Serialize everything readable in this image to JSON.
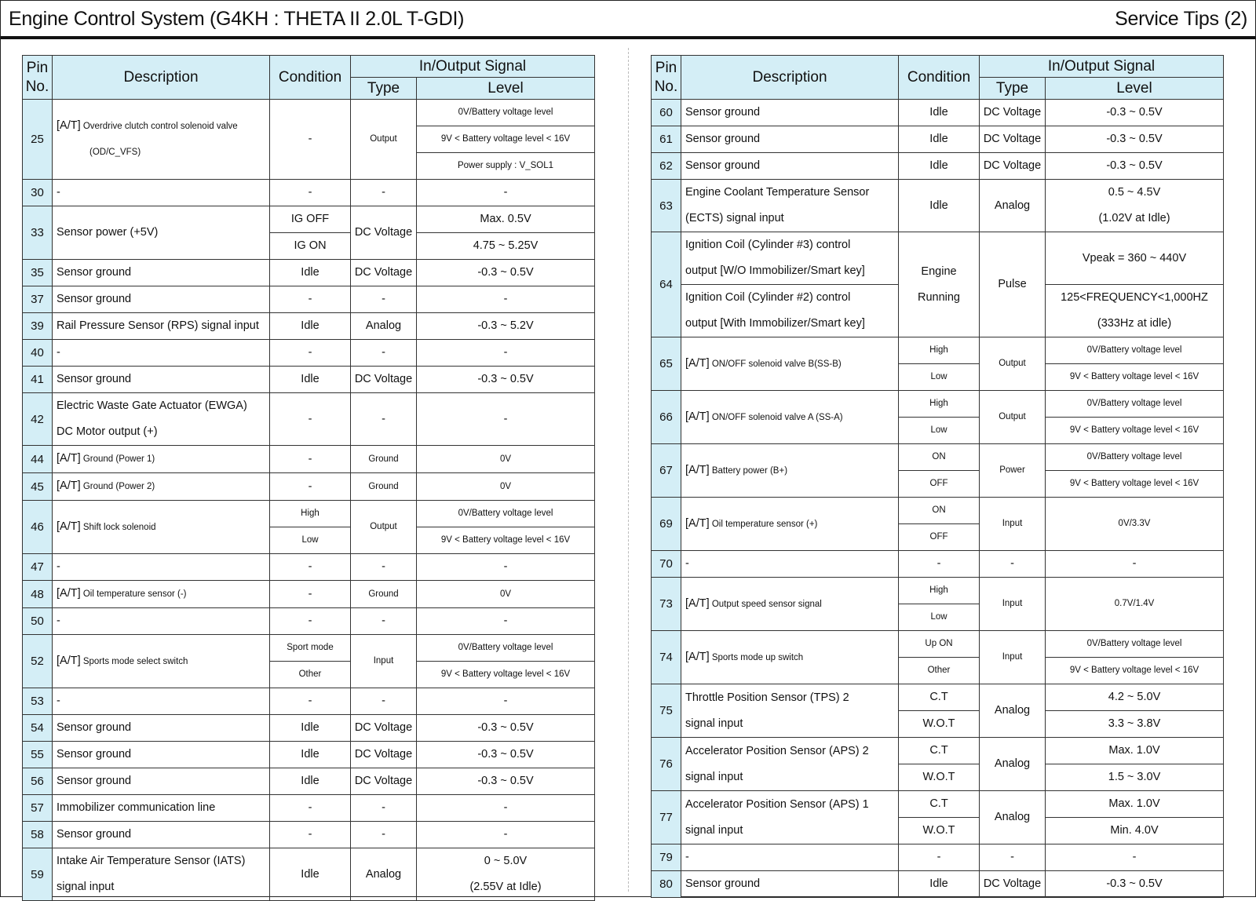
{
  "header": {
    "title": "Engine Control System (G4KH : THETA II 2.0L T-GDI)",
    "service_tips": "Service Tips  (2)"
  },
  "columns": {
    "pin": "Pin\nNo.",
    "description": "Description",
    "condition": "Condition",
    "signal": "In/Output Signal",
    "type": "Type",
    "level": "Level"
  },
  "left": {
    "rows": [
      [
        {
          "k": "p",
          "t": "25",
          "rs": 3
        },
        {
          "k": "d",
          "pre": "[A/T]",
          "t": "Overdrive clutch control solenoid valve",
          "t2": "(OD/C_VFS)",
          "rs": 3,
          "sm": true
        },
        {
          "t": "-",
          "rs": 3
        },
        {
          "t": "Output",
          "rs": 3,
          "sm": true
        },
        {
          "t": "0V/Battery voltage level",
          "sm": true
        }
      ],
      [
        {
          "t": "9V < Battery voltage level < 16V",
          "sm": true
        }
      ],
      [
        {
          "t": "Power supply : V_SOL1",
          "sm": true
        }
      ],
      [
        {
          "k": "p",
          "t": "30"
        },
        {
          "k": "d",
          "t": "-"
        },
        {
          "t": "-"
        },
        {
          "t": "-"
        },
        {
          "t": "-"
        }
      ],
      [
        {
          "k": "p",
          "t": "33",
          "rs": 2
        },
        {
          "k": "d",
          "t": "Sensor power (+5V)",
          "rs": 2
        },
        {
          "t": "IG OFF"
        },
        {
          "t": "DC Voltage",
          "rs": 2
        },
        {
          "t": "Max. 0.5V"
        }
      ],
      [
        {
          "t": "IG ON"
        },
        {
          "t": "4.75 ~ 5.25V"
        }
      ],
      [
        {
          "k": "p",
          "t": "35"
        },
        {
          "k": "d",
          "t": "Sensor ground"
        },
        {
          "t": "Idle"
        },
        {
          "t": "DC Voltage"
        },
        {
          "t": "-0.3 ~ 0.5V"
        }
      ],
      [
        {
          "k": "p",
          "t": "37"
        },
        {
          "k": "d",
          "t": "Sensor ground"
        },
        {
          "t": "-"
        },
        {
          "t": "-"
        },
        {
          "t": "-"
        }
      ],
      [
        {
          "k": "p",
          "t": "39"
        },
        {
          "k": "d",
          "t": "Rail Pressure Sensor (RPS) signal input"
        },
        {
          "t": "Idle"
        },
        {
          "t": "Analog"
        },
        {
          "t": "-0.3 ~ 5.2V"
        }
      ],
      [
        {
          "k": "p",
          "t": "40"
        },
        {
          "k": "d",
          "t": "-"
        },
        {
          "t": "-"
        },
        {
          "t": "-"
        },
        {
          "t": "-"
        }
      ],
      [
        {
          "k": "p",
          "t": "41"
        },
        {
          "k": "d",
          "t": "Sensor ground"
        },
        {
          "t": "Idle"
        },
        {
          "t": "DC Voltage"
        },
        {
          "t": "-0.3 ~ 0.5V"
        }
      ],
      [
        {
          "k": "p",
          "t": "42",
          "rs": 2
        },
        {
          "k": "d",
          "t": "Electric Waste Gate Actuator (EWGA)\nDC Motor output (+)",
          "rs": 2
        },
        {
          "t": "-",
          "rs": 2
        },
        {
          "t": "-",
          "rs": 2
        },
        {
          "t": "-",
          "rs": 2
        }
      ],
      [],
      [
        {
          "k": "p",
          "t": "44"
        },
        {
          "k": "d",
          "pre": "[A/T]",
          "t": "Ground (Power 1)",
          "sm": true
        },
        {
          "t": "-"
        },
        {
          "t": "Ground",
          "sm": true
        },
        {
          "t": "0V",
          "sm": true
        }
      ],
      [
        {
          "k": "p",
          "t": "45"
        },
        {
          "k": "d",
          "pre": "[A/T]",
          "t": "Ground (Power 2)",
          "sm": true
        },
        {
          "t": "-"
        },
        {
          "t": "Ground",
          "sm": true
        },
        {
          "t": "0V",
          "sm": true
        }
      ],
      [
        {
          "k": "p",
          "t": "46",
          "rs": 2
        },
        {
          "k": "d",
          "pre": "[A/T]",
          "t": "Shift lock solenoid",
          "rs": 2,
          "sm": true
        },
        {
          "t": "High",
          "sm": true
        },
        {
          "t": "Output",
          "rs": 2,
          "sm": true
        },
        {
          "t": "0V/Battery voltage level",
          "sm": true
        }
      ],
      [
        {
          "t": "Low",
          "sm": true
        },
        {
          "t": "9V < Battery voltage level < 16V",
          "sm": true
        }
      ],
      [
        {
          "k": "p",
          "t": "47"
        },
        {
          "k": "d",
          "t": "-"
        },
        {
          "t": "-"
        },
        {
          "t": "-"
        },
        {
          "t": "-"
        }
      ],
      [
        {
          "k": "p",
          "t": "48"
        },
        {
          "k": "d",
          "pre": "[A/T]",
          "t": "Oil temperature sensor (-)",
          "sm": true
        },
        {
          "t": "-"
        },
        {
          "t": "Ground",
          "sm": true
        },
        {
          "t": "0V",
          "sm": true
        }
      ],
      [
        {
          "k": "p",
          "t": "50"
        },
        {
          "k": "d",
          "t": "-"
        },
        {
          "t": "-"
        },
        {
          "t": "-"
        },
        {
          "t": "-"
        }
      ],
      [
        {
          "k": "p",
          "t": "52",
          "rs": 2
        },
        {
          "k": "d",
          "pre": "[A/T]",
          "t": "Sports mode select switch",
          "rs": 2,
          "sm": true
        },
        {
          "t": "Sport mode",
          "sm": true
        },
        {
          "t": "Input",
          "rs": 2,
          "sm": true
        },
        {
          "t": "0V/Battery voltage level",
          "sm": true
        }
      ],
      [
        {
          "t": "Other",
          "sm": true
        },
        {
          "t": "9V < Battery voltage level < 16V",
          "sm": true
        }
      ],
      [
        {
          "k": "p",
          "t": "53"
        },
        {
          "k": "d",
          "t": "-"
        },
        {
          "t": "-"
        },
        {
          "t": "-"
        },
        {
          "t": "-"
        }
      ],
      [
        {
          "k": "p",
          "t": "54"
        },
        {
          "k": "d",
          "t": "Sensor ground"
        },
        {
          "t": "Idle"
        },
        {
          "t": "DC Voltage"
        },
        {
          "t": "-0.3 ~ 0.5V"
        }
      ],
      [
        {
          "k": "p",
          "t": "55"
        },
        {
          "k": "d",
          "t": "Sensor ground"
        },
        {
          "t": "Idle"
        },
        {
          "t": "DC Voltage"
        },
        {
          "t": "-0.3 ~ 0.5V"
        }
      ],
      [
        {
          "k": "p",
          "t": "56"
        },
        {
          "k": "d",
          "t": "Sensor ground"
        },
        {
          "t": "Idle"
        },
        {
          "t": "DC Voltage"
        },
        {
          "t": "-0.3 ~ 0.5V"
        }
      ],
      [
        {
          "k": "p",
          "t": "57"
        },
        {
          "k": "d",
          "t": "Immobilizer communication line"
        },
        {
          "t": "-"
        },
        {
          "t": "-"
        },
        {
          "t": "-"
        }
      ],
      [
        {
          "k": "p",
          "t": "58"
        },
        {
          "k": "d",
          "t": "Sensor ground"
        },
        {
          "t": "-"
        },
        {
          "t": "-"
        },
        {
          "t": "-"
        }
      ],
      [
        {
          "k": "p",
          "t": "59",
          "rs": 2
        },
        {
          "k": "d",
          "t": "Intake Air Temperature Sensor (IATS)\nsignal input",
          "rs": 2
        },
        {
          "t": "Idle",
          "rs": 2
        },
        {
          "t": "Analog",
          "rs": 2
        },
        {
          "t": "0 ~ 5.0V\n(2.55V at Idle)",
          "rs": 2
        }
      ],
      []
    ]
  },
  "right": {
    "rows": [
      [
        {
          "k": "p",
          "t": "60"
        },
        {
          "k": "d",
          "t": "Sensor ground"
        },
        {
          "t": "Idle"
        },
        {
          "t": "DC Voltage"
        },
        {
          "t": "-0.3 ~ 0.5V"
        }
      ],
      [
        {
          "k": "p",
          "t": "61"
        },
        {
          "k": "d",
          "t": "Sensor ground"
        },
        {
          "t": "Idle"
        },
        {
          "t": "DC Voltage"
        },
        {
          "t": "-0.3 ~ 0.5V"
        }
      ],
      [
        {
          "k": "p",
          "t": "62"
        },
        {
          "k": "d",
          "t": "Sensor ground"
        },
        {
          "t": "Idle"
        },
        {
          "t": "DC Voltage"
        },
        {
          "t": "-0.3 ~ 0.5V"
        }
      ],
      [
        {
          "k": "p",
          "t": "63",
          "rs": 2
        },
        {
          "k": "d",
          "t": "Engine Coolant Temperature Sensor\n(ECTS) signal input",
          "rs": 2
        },
        {
          "t": "Idle",
          "rs": 2
        },
        {
          "t": "Analog",
          "rs": 2
        },
        {
          "t": "0.5 ~ 4.5V\n(1.02V at Idle)",
          "rs": 2
        }
      ],
      [],
      [
        {
          "k": "p",
          "t": "64",
          "rs": 4
        },
        {
          "k": "d",
          "t": "Ignition Coil (Cylinder #3) control\noutput [W/O Immobilizer/Smart key]",
          "rs": 2
        },
        {
          "t": "Engine\nRunning",
          "rs": 4
        },
        {
          "t": "Pulse",
          "rs": 4
        },
        {
          "t": "Vpeak = 360 ~ 440V",
          "rs": 2
        }
      ],
      [],
      [
        {
          "k": "d",
          "t": "Ignition Coil (Cylinder #2) control\noutput [With Immobilizer/Smart key]",
          "rs": 2
        },
        {
          "t": "125<FREQUENCY<1,000HZ\n(333Hz at idle)",
          "rs": 2
        }
      ],
      [],
      [
        {
          "k": "p",
          "t": "65",
          "rs": 2
        },
        {
          "k": "d",
          "pre": "[A/T]",
          "t": "ON/OFF solenoid valve B(SS-B)",
          "rs": 2,
          "sm": true
        },
        {
          "t": "High",
          "sm": true
        },
        {
          "t": "Output",
          "rs": 2,
          "sm": true
        },
        {
          "t": "0V/Battery voltage level",
          "sm": true
        }
      ],
      [
        {
          "t": "Low",
          "sm": true
        },
        {
          "t": "9V < Battery voltage level < 16V",
          "sm": true
        }
      ],
      [
        {
          "k": "p",
          "t": "66",
          "rs": 2
        },
        {
          "k": "d",
          "pre": "[A/T]",
          "t": "ON/OFF solenoid valve A (SS-A)",
          "rs": 2,
          "sm": true
        },
        {
          "t": "High",
          "sm": true
        },
        {
          "t": "Output",
          "rs": 2,
          "sm": true
        },
        {
          "t": "0V/Battery voltage level",
          "sm": true
        }
      ],
      [
        {
          "t": "Low",
          "sm": true
        },
        {
          "t": "9V < Battery voltage level < 16V",
          "sm": true
        }
      ],
      [
        {
          "k": "p",
          "t": "67",
          "rs": 2
        },
        {
          "k": "d",
          "pre": "[A/T]",
          "t": "Battery power (B+)",
          "rs": 2,
          "sm": true
        },
        {
          "t": "ON",
          "sm": true
        },
        {
          "t": "Power",
          "rs": 2,
          "sm": true
        },
        {
          "t": "0V/Battery voltage level",
          "sm": true
        }
      ],
      [
        {
          "t": "OFF",
          "sm": true
        },
        {
          "t": "9V < Battery voltage level < 16V",
          "sm": true
        }
      ],
      [
        {
          "k": "p",
          "t": "69",
          "rs": 2
        },
        {
          "k": "d",
          "pre": "[A/T]",
          "t": "Oil temperature sensor (+)",
          "rs": 2,
          "sm": true
        },
        {
          "t": "ON",
          "sm": true
        },
        {
          "t": "Input",
          "rs": 2,
          "sm": true
        },
        {
          "t": "0V/3.3V",
          "rs": 2,
          "sm": true
        }
      ],
      [
        {
          "t": "OFF",
          "sm": true
        }
      ],
      [
        {
          "k": "p",
          "t": "70"
        },
        {
          "k": "d",
          "t": "-"
        },
        {
          "t": "-"
        },
        {
          "t": "-"
        },
        {
          "t": "-"
        }
      ],
      [
        {
          "k": "p",
          "t": "73",
          "rs": 2
        },
        {
          "k": "d",
          "pre": "[A/T]",
          "t": "Output speed sensor signal",
          "rs": 2,
          "sm": true
        },
        {
          "t": "High",
          "sm": true
        },
        {
          "t": "Input",
          "rs": 2,
          "sm": true
        },
        {
          "t": "0.7V/1.4V",
          "rs": 2,
          "sm": true
        }
      ],
      [
        {
          "t": "Low",
          "sm": true
        }
      ],
      [
        {
          "k": "p",
          "t": "74",
          "rs": 2
        },
        {
          "k": "d",
          "pre": "[A/T]",
          "t": "Sports mode up switch",
          "rs": 2,
          "sm": true
        },
        {
          "t": "Up ON",
          "sm": true
        },
        {
          "t": "Input",
          "rs": 2,
          "sm": true
        },
        {
          "t": "0V/Battery voltage level",
          "sm": true
        }
      ],
      [
        {
          "t": "Other",
          "sm": true
        },
        {
          "t": "9V < Battery voltage level < 16V",
          "sm": true
        }
      ],
      [
        {
          "k": "p",
          "t": "75",
          "rs": 2
        },
        {
          "k": "d",
          "t": "Throttle Position Sensor (TPS) 2\nsignal input",
          "rs": 2
        },
        {
          "t": "C.T"
        },
        {
          "t": "Analog",
          "rs": 2
        },
        {
          "t": "4.2 ~ 5.0V"
        }
      ],
      [
        {
          "t": "W.O.T"
        },
        {
          "t": "3.3 ~ 3.8V"
        }
      ],
      [
        {
          "k": "p",
          "t": "76",
          "rs": 2
        },
        {
          "k": "d",
          "t": "Accelerator Position Sensor (APS) 2\nsignal input",
          "rs": 2
        },
        {
          "t": "C.T"
        },
        {
          "t": "Analog",
          "rs": 2
        },
        {
          "t": "Max. 1.0V"
        }
      ],
      [
        {
          "t": "W.O.T"
        },
        {
          "t": "1.5 ~ 3.0V"
        }
      ],
      [
        {
          "k": "p",
          "t": "77",
          "rs": 2
        },
        {
          "k": "d",
          "t": "Accelerator Position Sensor (APS) 1\nsignal input",
          "rs": 2
        },
        {
          "t": "C.T"
        },
        {
          "t": "Analog",
          "rs": 2
        },
        {
          "t": "Max. 1.0V"
        }
      ],
      [
        {
          "t": "W.O.T"
        },
        {
          "t": "Min. 4.0V"
        }
      ],
      [
        {
          "k": "p",
          "t": "79"
        },
        {
          "k": "d",
          "t": "-"
        },
        {
          "t": "-"
        },
        {
          "t": "-"
        },
        {
          "t": "-"
        }
      ],
      [
        {
          "k": "p",
          "t": "80"
        },
        {
          "k": "d",
          "t": "Sensor ground"
        },
        {
          "t": "Idle"
        },
        {
          "t": "DC Voltage"
        },
        {
          "t": "-0.3 ~ 0.5V"
        }
      ]
    ]
  },
  "colors": {
    "header_bg": "#d4eef6",
    "border": "#333333"
  }
}
